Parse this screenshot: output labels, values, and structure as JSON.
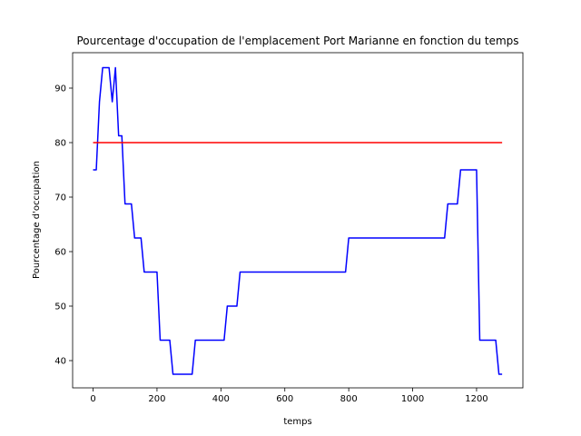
{
  "chart_data": {
    "type": "line",
    "title": "Pourcentage d'occupation de l'emplacement Port Marianne en fonction du temps",
    "xlabel": "temps",
    "ylabel": "Pourcentage d'occupation",
    "xlim": [
      -64,
      1345
    ],
    "ylim": [
      35,
      96.5
    ],
    "xticks": [
      0,
      200,
      400,
      600,
      800,
      1000,
      1200
    ],
    "yticks": [
      40,
      50,
      60,
      70,
      80,
      90
    ],
    "grid": false,
    "series": [
      {
        "color": "#0000ff",
        "x": [
          0,
          10,
          20,
          30,
          40,
          50,
          60,
          70,
          80,
          90,
          100,
          110,
          120,
          130,
          140,
          150,
          160,
          170,
          180,
          190,
          200,
          210,
          220,
          230,
          240,
          250,
          260,
          270,
          280,
          290,
          300,
          310,
          320,
          330,
          340,
          350,
          360,
          370,
          380,
          390,
          400,
          410,
          420,
          430,
          440,
          450,
          460,
          470,
          480,
          490,
          500,
          510,
          520,
          530,
          540,
          550,
          560,
          570,
          580,
          590,
          600,
          610,
          620,
          630,
          640,
          650,
          660,
          670,
          680,
          690,
          700,
          710,
          720,
          730,
          740,
          750,
          760,
          770,
          780,
          790,
          800,
          810,
          820,
          830,
          840,
          850,
          860,
          870,
          880,
          890,
          900,
          910,
          920,
          930,
          940,
          950,
          960,
          970,
          980,
          990,
          1000,
          1010,
          1020,
          1030,
          1040,
          1050,
          1060,
          1070,
          1080,
          1090,
          1100,
          1110,
          1120,
          1130,
          1140,
          1150,
          1160,
          1170,
          1180,
          1190,
          1200,
          1210,
          1220,
          1230,
          1240,
          1250,
          1260,
          1270,
          1280
        ],
        "y": [
          75,
          75,
          87.5,
          93.75,
          93.75,
          93.75,
          87.5,
          93.75,
          81.25,
          81.25,
          68.75,
          68.75,
          68.75,
          62.5,
          62.5,
          62.5,
          56.25,
          56.25,
          56.25,
          56.25,
          56.25,
          43.75,
          43.75,
          43.75,
          43.75,
          37.5,
          37.5,
          37.5,
          37.5,
          37.5,
          37.5,
          37.5,
          43.75,
          43.75,
          43.75,
          43.75,
          43.75,
          43.75,
          43.75,
          43.75,
          43.75,
          43.75,
          50,
          50,
          50,
          50,
          56.25,
          56.25,
          56.25,
          56.25,
          56.25,
          56.25,
          56.25,
          56.25,
          56.25,
          56.25,
          56.25,
          56.25,
          56.25,
          56.25,
          56.25,
          56.25,
          56.25,
          56.25,
          56.25,
          56.25,
          56.25,
          56.25,
          56.25,
          56.25,
          56.25,
          56.25,
          56.25,
          56.25,
          56.25,
          56.25,
          56.25,
          56.25,
          56.25,
          56.25,
          62.5,
          62.5,
          62.5,
          62.5,
          62.5,
          62.5,
          62.5,
          62.5,
          62.5,
          62.5,
          62.5,
          62.5,
          62.5,
          62.5,
          62.5,
          62.5,
          62.5,
          62.5,
          62.5,
          62.5,
          62.5,
          62.5,
          62.5,
          62.5,
          62.5,
          62.5,
          62.5,
          62.5,
          62.5,
          62.5,
          62.5,
          68.75,
          68.75,
          68.75,
          68.75,
          75,
          75,
          75,
          75,
          75,
          75,
          43.75,
          43.75,
          43.75,
          43.75,
          43.75,
          43.75,
          37.5,
          37.5
        ]
      },
      {
        "color": "#ff0000",
        "x": [
          0,
          1280
        ],
        "y": [
          80,
          80
        ]
      }
    ]
  }
}
